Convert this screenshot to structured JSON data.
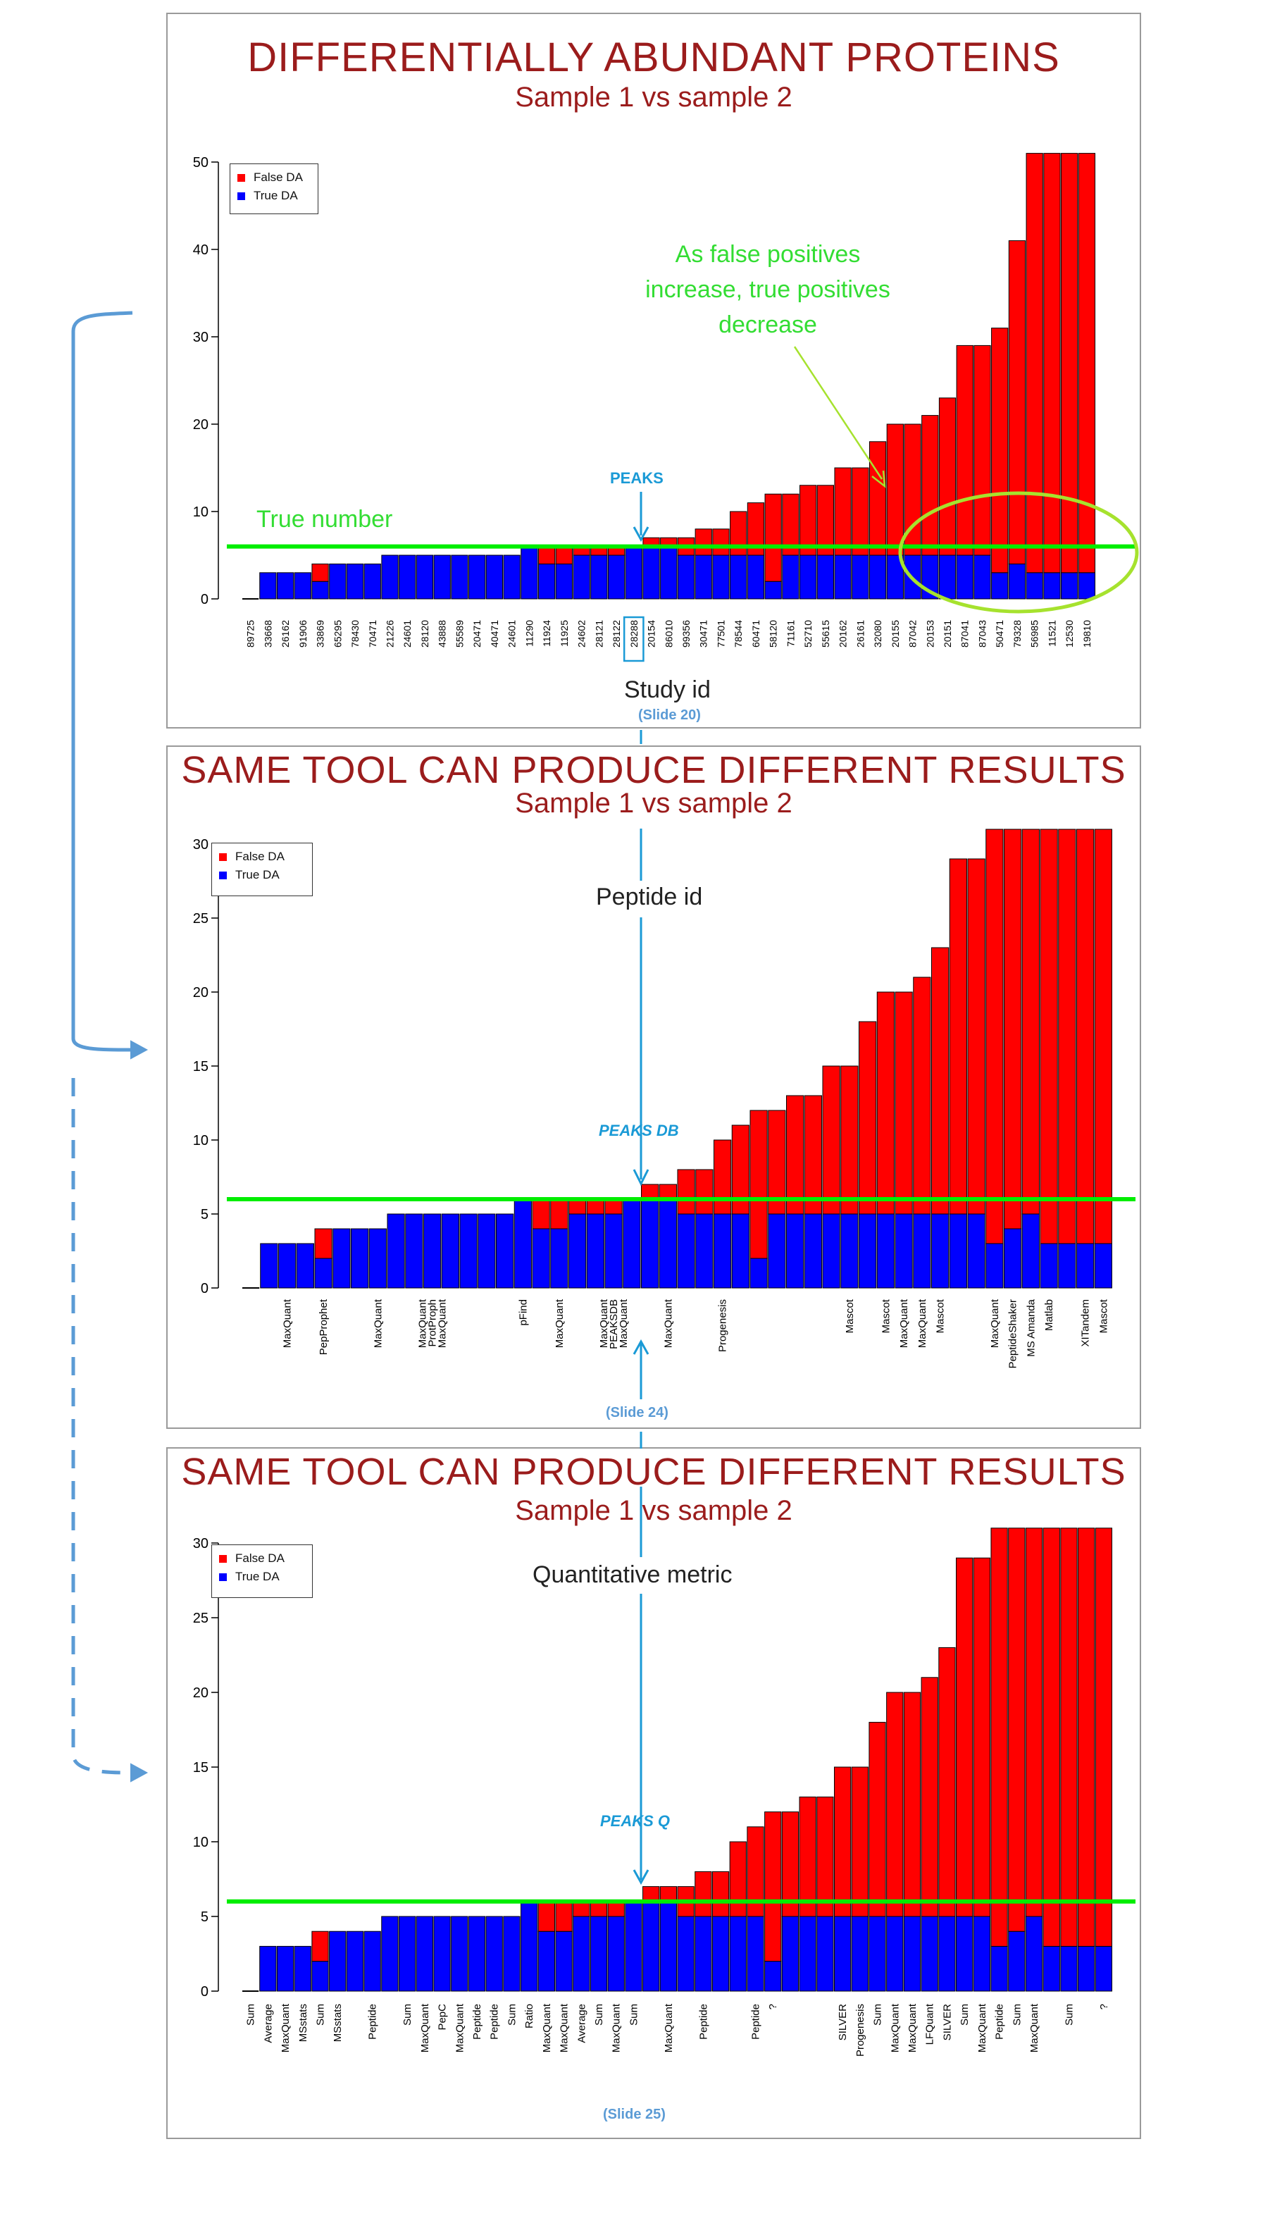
{
  "colors": {
    "false_da": "#ff0000",
    "true_da": "#0000ff",
    "true_line": "#00ee00",
    "title": "#9b1c1c",
    "annotation_blue": "#1a9ad6",
    "connector_blue": "#5b9bd5",
    "annotation_green": "#33dd33"
  },
  "panels": [
    {
      "title": "DIFFERENTIALLY ABUNDANT PROTEINS",
      "subtitle": "Sample 1 vs sample 2",
      "pointer_label": "PEAKS",
      "caption": "Study id",
      "slide_ref": "(Slide 20)",
      "true_number_label": "True number",
      "note": [
        "As false positives",
        "increase, true positives",
        "decrease"
      ]
    },
    {
      "title": "SAME TOOL CAN PRODUCE DIFFERENT RESULTS",
      "subtitle": "Sample 1 vs sample 2",
      "pointer_label": "PEAKS DB",
      "caption": "Peptide id",
      "slide_ref": "(Slide 24)"
    },
    {
      "title": "SAME TOOL CAN PRODUCE DIFFERENT RESULTS",
      "subtitle": "Sample 1 vs sample 2",
      "pointer_label": "PEAKS Q",
      "caption": "Quantitative metric",
      "slide_ref": "(Slide 25)"
    }
  ],
  "legend": {
    "false_label": "False DA",
    "true_label": "True DA"
  },
  "chart_data": [
    {
      "type": "bar",
      "stacked": true,
      "xlabel": "Study id",
      "yticks": [
        0,
        10,
        20,
        30,
        40,
        50
      ],
      "ylim": [
        0,
        51
      ],
      "true_number": 6,
      "highlight_category": "28288",
      "categories": [
        "89725",
        "33668",
        "26162",
        "91906",
        "33869",
        "65295",
        "78430",
        "70471",
        "21226",
        "24601",
        "28120",
        "43888",
        "55589",
        "20471",
        "40471",
        "24601",
        "11290",
        "11924",
        "11925",
        "24602",
        "28121",
        "28122",
        "28288",
        "20154",
        "86010",
        "99356",
        "30471",
        "77501",
        "78544",
        "60471",
        "58120",
        "71161",
        "52710",
        "55615",
        "20162",
        "26161",
        "32080",
        "20155",
        "87042",
        "20153",
        "20151",
        "87041",
        "87043",
        "50471",
        "79328",
        "56985",
        "11521",
        "12530",
        "19810"
      ],
      "series": [
        {
          "name": "True DA",
          "values": [
            0,
            3,
            3,
            3,
            2,
            4,
            4,
            4,
            5,
            5,
            5,
            5,
            5,
            5,
            5,
            5,
            6,
            4,
            4,
            5,
            5,
            5,
            6,
            6,
            6,
            5,
            5,
            5,
            5,
            5,
            2,
            5,
            5,
            5,
            5,
            5,
            5,
            5,
            5,
            5,
            5,
            5,
            5,
            3,
            4,
            3,
            3,
            3,
            3
          ]
        },
        {
          "name": "False DA",
          "values": [
            0,
            0,
            0,
            0,
            2,
            0,
            0,
            0,
            0,
            0,
            0,
            0,
            0,
            0,
            0,
            0,
            0,
            2,
            2,
            1,
            1,
            1,
            0,
            1,
            1,
            2,
            3,
            3,
            5,
            6,
            10,
            7,
            8,
            8,
            10,
            10,
            13,
            15,
            15,
            16,
            18,
            24,
            24,
            28,
            37,
            48,
            48,
            48,
            48
          ]
        }
      ]
    },
    {
      "type": "bar",
      "stacked": true,
      "xlabel": "Peptide id",
      "yticks": [
        0,
        5,
        10,
        15,
        20,
        25,
        30
      ],
      "ylim": [
        0,
        31
      ],
      "true_number": 6,
      "categories": [
        "",
        "",
        "MaxQuant",
        "",
        "PepProphet",
        "",
        "",
        "MaxQuant",
        "",
        "",
        "MaxQuant\nProtProph\nMaxQuant",
        "",
        "",
        "",
        "",
        "pFind",
        "",
        "MaxQuant",
        "",
        "",
        "MaxQuant\nPEAKSDB\nMaxQuant",
        "",
        "",
        "MaxQuant",
        "",
        "",
        "Progenesis",
        "",
        "",
        "",
        "",
        "",
        "",
        "Mascot",
        "",
        "Mascot",
        "MaxQuant",
        "MaxQuant",
        "Mascot",
        "",
        "",
        "MaxQuant",
        "PeptideShaker",
        "MS Amanda",
        "Matlab",
        "",
        "XITandem",
        "Mascot"
      ],
      "series": [
        {
          "name": "True DA",
          "values": [
            0,
            3,
            3,
            3,
            2,
            4,
            4,
            4,
            5,
            5,
            5,
            5,
            5,
            5,
            5,
            6,
            4,
            4,
            5,
            5,
            5,
            6,
            6,
            6,
            5,
            5,
            5,
            5,
            2,
            5,
            5,
            5,
            5,
            5,
            5,
            5,
            5,
            5,
            5,
            5,
            5,
            3,
            4,
            5,
            3,
            3,
            3,
            3
          ]
        },
        {
          "name": "False DA",
          "values": [
            0,
            0,
            0,
            0,
            2,
            0,
            0,
            0,
            0,
            0,
            0,
            0,
            0,
            0,
            0,
            0,
            2,
            2,
            1,
            1,
            1,
            0,
            1,
            1,
            3,
            3,
            5,
            6,
            10,
            7,
            8,
            8,
            10,
            10,
            13,
            15,
            15,
            16,
            18,
            24,
            24,
            28,
            27,
            26,
            28,
            28,
            28,
            28
          ]
        }
      ]
    },
    {
      "type": "bar",
      "stacked": true,
      "xlabel": "Quantitative metric",
      "yticks": [
        0,
        5,
        10,
        15,
        20,
        25,
        30
      ],
      "ylim": [
        0,
        31
      ],
      "true_number": 6,
      "categories": [
        "Sum",
        "Average",
        "MaxQuant",
        "MSstats",
        "Sum",
        "MSstats",
        "",
        "Peptide",
        "",
        "Sum",
        "MaxQuant",
        "PepC",
        "MaxQuant",
        "Peptide",
        "Peptide",
        "Sum",
        "Ratio",
        "MaxQuant",
        "MaxQuant",
        "Average",
        "Sum",
        "MaxQuant",
        "Sum",
        "",
        "MaxQuant",
        "",
        "Peptide",
        "",
        "",
        "Peptide",
        "?",
        "",
        "",
        "",
        "SILVER",
        "Progenesis",
        "Sum",
        "MaxQuant",
        "MaxQuant",
        "LFQuant",
        "SILVER",
        "Sum",
        "MaxQuant",
        "Peptide",
        "Sum",
        "MaxQuant",
        "",
        "Sum",
        "",
        "?"
      ],
      "series": [
        {
          "name": "True DA",
          "values": [
            0,
            3,
            3,
            3,
            2,
            4,
            4,
            4,
            5,
            5,
            5,
            5,
            5,
            5,
            5,
            5,
            6,
            4,
            4,
            5,
            5,
            5,
            6,
            6,
            6,
            5,
            5,
            5,
            5,
            5,
            2,
            5,
            5,
            5,
            5,
            5,
            5,
            5,
            5,
            5,
            5,
            5,
            5,
            3,
            4,
            5,
            3,
            3,
            3,
            3
          ]
        },
        {
          "name": "False DA",
          "values": [
            0,
            0,
            0,
            0,
            2,
            0,
            0,
            0,
            0,
            0,
            0,
            0,
            0,
            0,
            0,
            0,
            0,
            2,
            2,
            1,
            1,
            1,
            0,
            1,
            1,
            2,
            3,
            3,
            5,
            6,
            10,
            7,
            8,
            8,
            10,
            10,
            13,
            15,
            15,
            16,
            18,
            24,
            24,
            28,
            27,
            26,
            28,
            28,
            28,
            28
          ]
        }
      ]
    }
  ]
}
